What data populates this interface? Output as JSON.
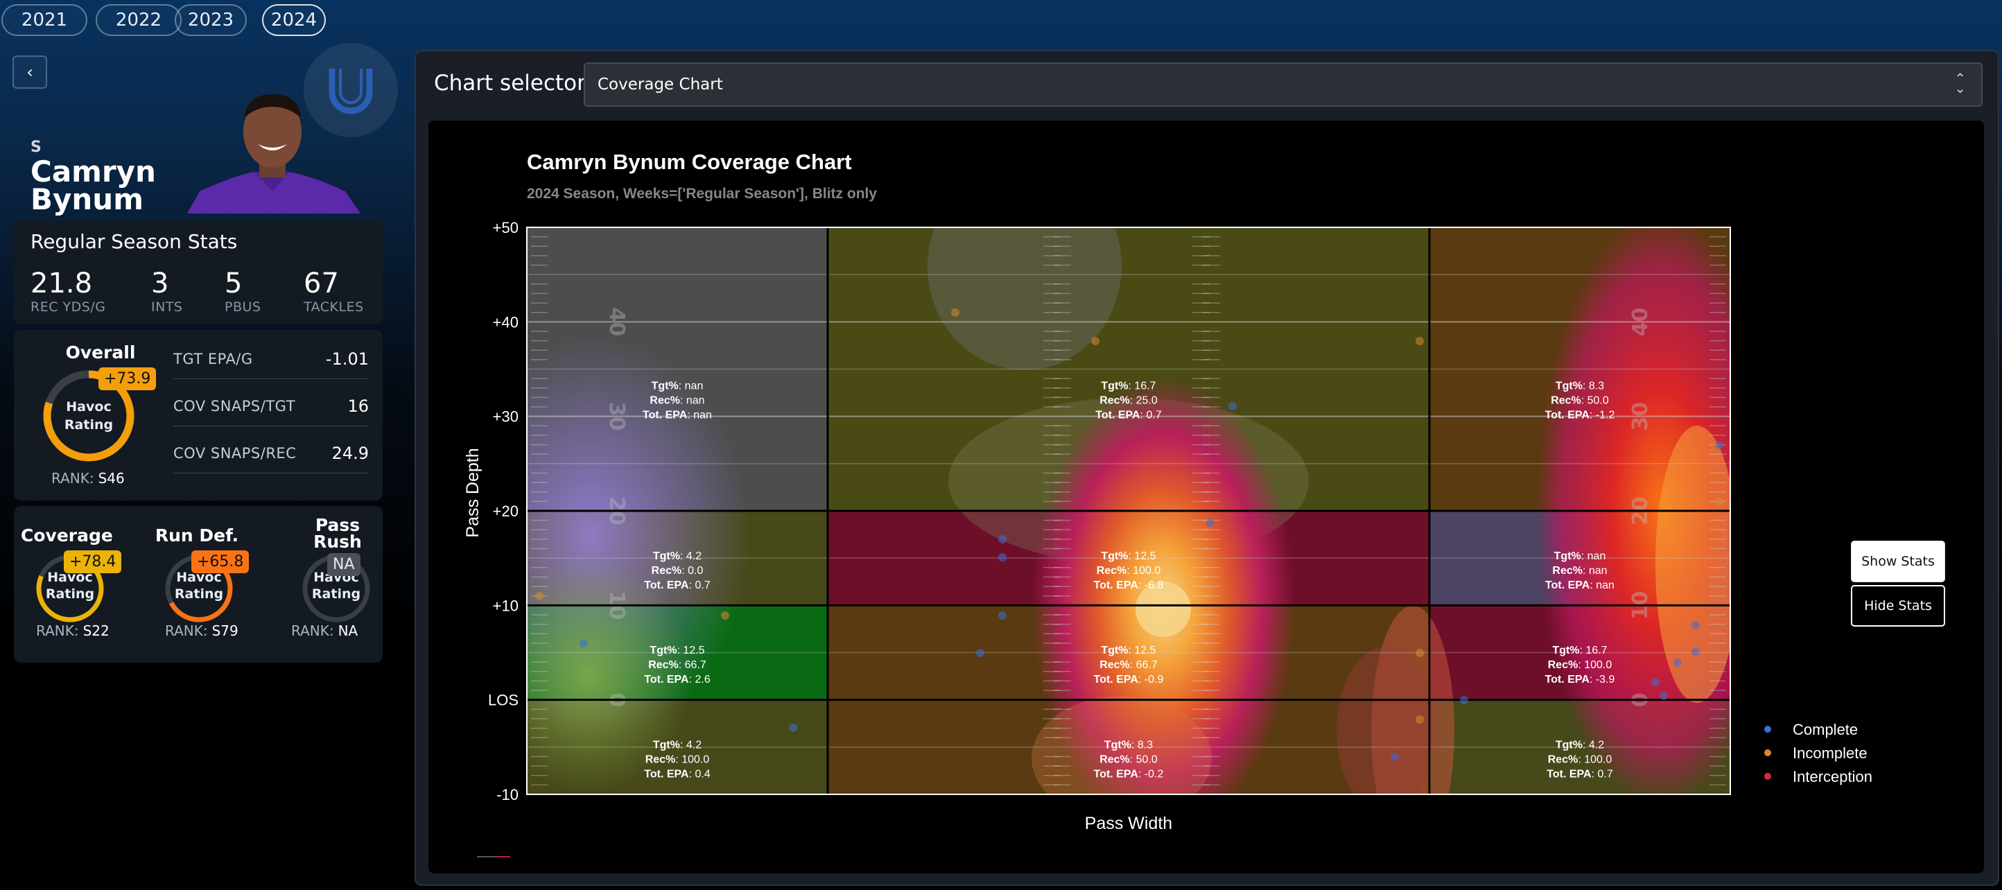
{
  "years": [
    "2021",
    "2022",
    "2023",
    "2024"
  ],
  "active_year": "2024",
  "player": {
    "position": "S",
    "first_name": "Camryn",
    "last_name": "Bynum"
  },
  "season_stats": {
    "title": "Regular Season Stats",
    "items": [
      {
        "value": "21.8",
        "label": "REC YDS/G"
      },
      {
        "value": "3",
        "label": "INTS"
      },
      {
        "value": "5",
        "label": "PBUS"
      },
      {
        "value": "67",
        "label": "TACKLES"
      }
    ]
  },
  "overall": {
    "title": "Overall",
    "gauge_text_1": "Havoc",
    "gauge_text_2": "Rating",
    "badge": "+73.9",
    "rank_label": "RANK:",
    "rank_value": "S46",
    "gauge_fill": 0.8,
    "color": "#f59e0b"
  },
  "metrics": [
    {
      "label": "TGT EPA/G",
      "value": "-1.01"
    },
    {
      "label": "COV SNAPS/TGT",
      "value": "16"
    },
    {
      "label": "COV SNAPS/REC",
      "value": "24.9"
    }
  ],
  "sub_ratings": [
    {
      "title": "Coverage",
      "badge": "+78.4",
      "gauge_text_1": "Havoc",
      "gauge_text_2": "Rating",
      "rank_label": "RANK:",
      "rank_value": "S22",
      "color": "#eab308"
    },
    {
      "title": "Run Def.",
      "badge": "+65.8",
      "gauge_text_1": "Havoc",
      "gauge_text_2": "Rating",
      "rank_label": "RANK:",
      "rank_value": "S79",
      "color": "#f97316"
    },
    {
      "title_1": "Pass",
      "title_2": "Rush",
      "badge": "NA",
      "gauge_text_1": "Havoc",
      "gauge_text_2": "Rating",
      "rank_label": "RANK:",
      "rank_value": "NA",
      "color": "#6b7280"
    }
  ],
  "chart_selector": {
    "label": "Chart selector:",
    "value": "Coverage Chart"
  },
  "buttons": {
    "show_stats": "Show Stats",
    "hide_stats": "Hide Stats"
  },
  "chart_data": {
    "type": "heatmap",
    "title": "Camryn Bynum Coverage Chart",
    "subtitle": "2024 Season, Weeks=['Regular Season'], Blitz only",
    "xlabel": "Pass Width",
    "ylabel": "Pass Depth",
    "y_ticks": [
      "+50",
      "+40",
      "+30",
      "+20",
      "+10",
      "LOS",
      "-10"
    ],
    "ylim": [
      -10,
      50
    ],
    "field_numbers": [
      "40",
      "30",
      "20",
      "10",
      "0"
    ],
    "zones": [
      {
        "row": "deep",
        "col": "left",
        "tgt": "nan",
        "rec": "nan",
        "epa": "nan"
      },
      {
        "row": "deep",
        "col": "middle",
        "tgt": "16.7",
        "rec": "25.0",
        "epa": "0.7"
      },
      {
        "row": "deep",
        "col": "right",
        "tgt": "8.3",
        "rec": "50.0",
        "epa": "-1.2"
      },
      {
        "row": "intermediate",
        "col": "left",
        "tgt": "4.2",
        "rec": "0.0",
        "epa": "0.7"
      },
      {
        "row": "intermediate",
        "col": "middle",
        "tgt": "12.5",
        "rec": "100.0",
        "epa": "-6.8"
      },
      {
        "row": "intermediate",
        "col": "right",
        "tgt": "nan",
        "rec": "nan",
        "epa": "nan"
      },
      {
        "row": "short",
        "col": "left",
        "tgt": "12.5",
        "rec": "66.7",
        "epa": "2.6"
      },
      {
        "row": "short",
        "col": "middle",
        "tgt": "12.5",
        "rec": "66.7",
        "epa": "-0.9"
      },
      {
        "row": "short",
        "col": "right",
        "tgt": "16.7",
        "rec": "100.0",
        "epa": "-3.9"
      },
      {
        "row": "behind",
        "col": "left",
        "tgt": "4.2",
        "rec": "100.0",
        "epa": "0.4"
      },
      {
        "row": "behind",
        "col": "middle",
        "tgt": "8.3",
        "rec": "50.0",
        "epa": "-0.2"
      },
      {
        "row": "behind",
        "col": "right",
        "tgt": "4.2",
        "rec": "100.0",
        "epa": "0.7"
      }
    ],
    "zone_labels": {
      "tgt": "Tgt%",
      "rec": "Rec%",
      "epa": "Tot. EPA"
    },
    "legend": [
      {
        "label": "Complete",
        "color": "#3b6fd6"
      },
      {
        "label": "Incomplete",
        "color": "#d98a2b"
      },
      {
        "label": "Interception",
        "color": "#d6283a"
      }
    ],
    "legend_placement": "right"
  }
}
